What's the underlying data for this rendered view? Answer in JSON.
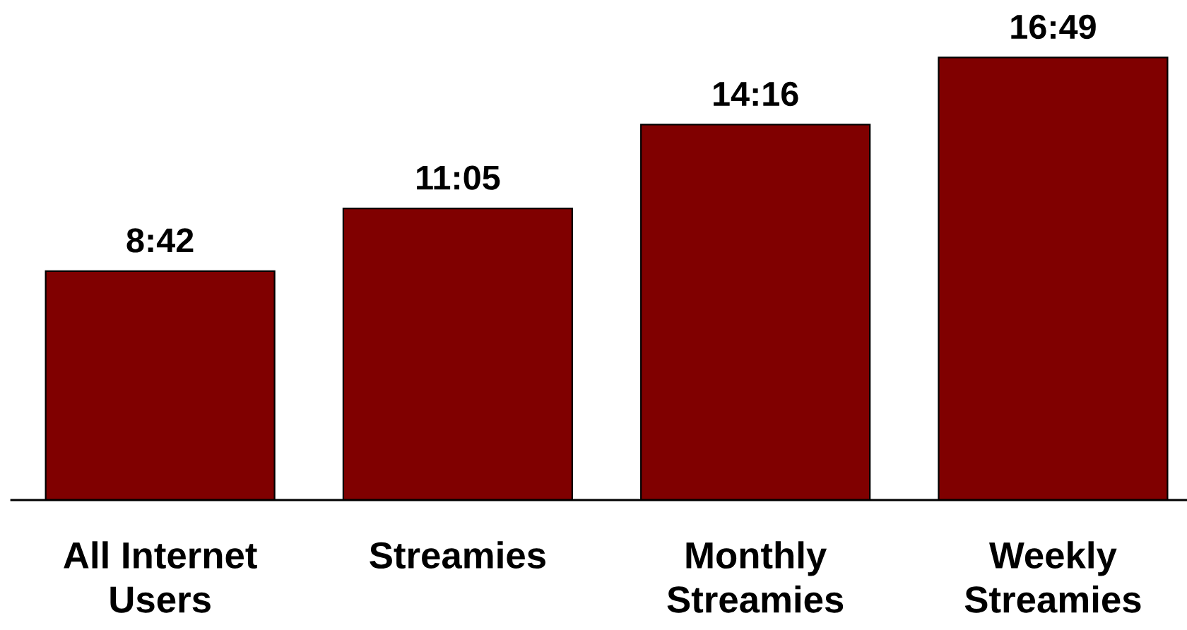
{
  "chart_data": {
    "type": "bar",
    "categories": [
      "All Internet\nUsers",
      "Streamies",
      "Monthly\nStreamies",
      "Weekly\nStreamies"
    ],
    "values": [
      8.7,
      11.083,
      14.267,
      16.817
    ],
    "value_labels": [
      "8:42",
      "11:05",
      "14:16",
      "16:49"
    ],
    "color": "#800000",
    "tick_labels": "x"
  }
}
